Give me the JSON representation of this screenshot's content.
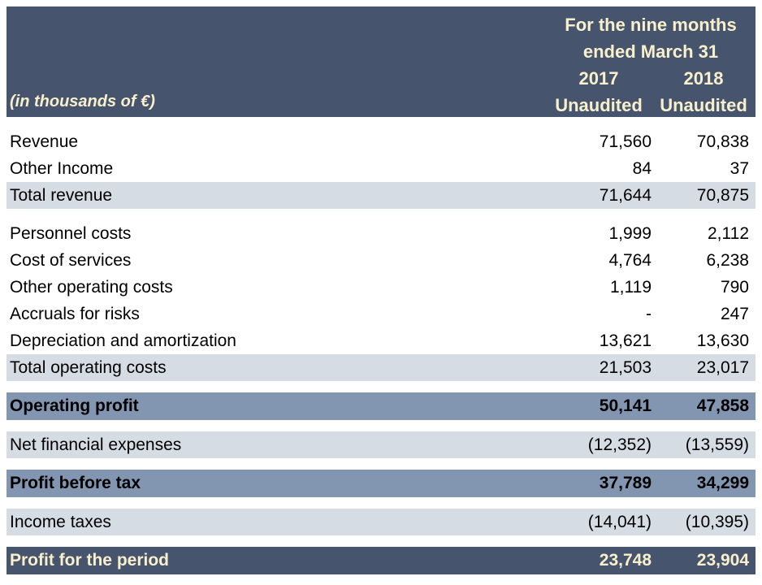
{
  "colors": {
    "header_bg": "#46546E",
    "subtotal_band_bg": "#D6DCE4",
    "profit_band_bg": "#8396B1",
    "final_band_bg": "#46546E",
    "header_text": "#F8F0CC",
    "body_text": "#000000"
  },
  "header": {
    "units_label": "(in thousands of €)",
    "period_line1": "For the nine months",
    "period_line2": "ended March 31",
    "col1_year": "2017",
    "col2_year": "2018",
    "col1_status": "Unaudited",
    "col2_status": "Unaudited"
  },
  "rows": [
    {
      "label": "Revenue",
      "v2017": "71,560",
      "v2018": "70,838"
    },
    {
      "label": "Other Income",
      "v2017": "84",
      "v2018": "37"
    },
    {
      "label": "Total revenue",
      "v2017": "71,644",
      "v2018": "70,875"
    },
    {
      "label": "Personnel costs",
      "v2017": "1,999",
      "v2018": "2,112"
    },
    {
      "label": "Cost of services",
      "v2017": "4,764",
      "v2018": "6,238"
    },
    {
      "label": "Other operating costs",
      "v2017": "1,119",
      "v2018": "790"
    },
    {
      "label": "Accruals for risks",
      "v2017": "-",
      "v2018": "247"
    },
    {
      "label": "Depreciation and amortization",
      "v2017": "13,621",
      "v2018": "13,630"
    },
    {
      "label": "Total operating costs",
      "v2017": "21,503",
      "v2018": "23,017"
    },
    {
      "label": "Operating profit",
      "v2017": "50,141",
      "v2018": "47,858"
    },
    {
      "label": "Net financial expenses",
      "v2017": "(12,352)",
      "v2018": "(13,559)"
    },
    {
      "label": "Profit before tax",
      "v2017": "37,789",
      "v2018": "34,299"
    },
    {
      "label": "Income taxes",
      "v2017": "(14,041)",
      "v2018": "(10,395)"
    },
    {
      "label": "Profit for the period",
      "v2017": "23,748",
      "v2018": "23,904"
    }
  ]
}
